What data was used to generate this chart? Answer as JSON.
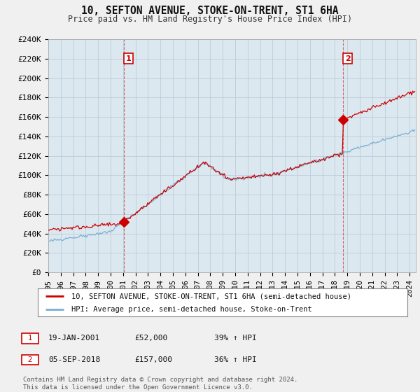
{
  "title": "10, SEFTON AVENUE, STOKE-ON-TRENT, ST1 6HA",
  "subtitle": "Price paid vs. HM Land Registry's House Price Index (HPI)",
  "ylabel_ticks": [
    "£0",
    "£20K",
    "£40K",
    "£60K",
    "£80K",
    "£100K",
    "£120K",
    "£140K",
    "£160K",
    "£180K",
    "£200K",
    "£220K",
    "£240K"
  ],
  "ylim": [
    0,
    240000
  ],
  "ytick_values": [
    0,
    20000,
    40000,
    60000,
    80000,
    100000,
    120000,
    140000,
    160000,
    180000,
    200000,
    220000,
    240000
  ],
  "x_start": 1995.0,
  "x_end": 2024.5,
  "xtick_years": [
    1995,
    1996,
    1997,
    1998,
    1999,
    2000,
    2001,
    2002,
    2003,
    2004,
    2005,
    2006,
    2007,
    2008,
    2009,
    2010,
    2011,
    2012,
    2013,
    2014,
    2015,
    2016,
    2017,
    2018,
    2019,
    2020,
    2021,
    2022,
    2023,
    2024
  ],
  "line1_color": "#cc0000",
  "line2_color": "#7ab0d4",
  "marker1_x": 2001.05,
  "marker1_y": 52000,
  "marker2_x": 2018.67,
  "marker2_y": 157000,
  "vline1_x": 2001.05,
  "vline2_x": 2018.67,
  "legend_line1": "10, SEFTON AVENUE, STOKE-ON-TRENT, ST1 6HA (semi-detached house)",
  "legend_line2": "HPI: Average price, semi-detached house, Stoke-on-Trent",
  "annotation1_label": "1",
  "annotation1_date": "19-JAN-2001",
  "annotation1_price": "£52,000",
  "annotation1_hpi": "39% ↑ HPI",
  "annotation2_label": "2",
  "annotation2_date": "05-SEP-2018",
  "annotation2_price": "£157,000",
  "annotation2_hpi": "36% ↑ HPI",
  "footer": "Contains HM Land Registry data © Crown copyright and database right 2024.\nThis data is licensed under the Open Government Licence v3.0.",
  "background_color": "#f0f0f0",
  "plot_bg_color": "#dce8f0",
  "grid_color": "#bbccd8"
}
